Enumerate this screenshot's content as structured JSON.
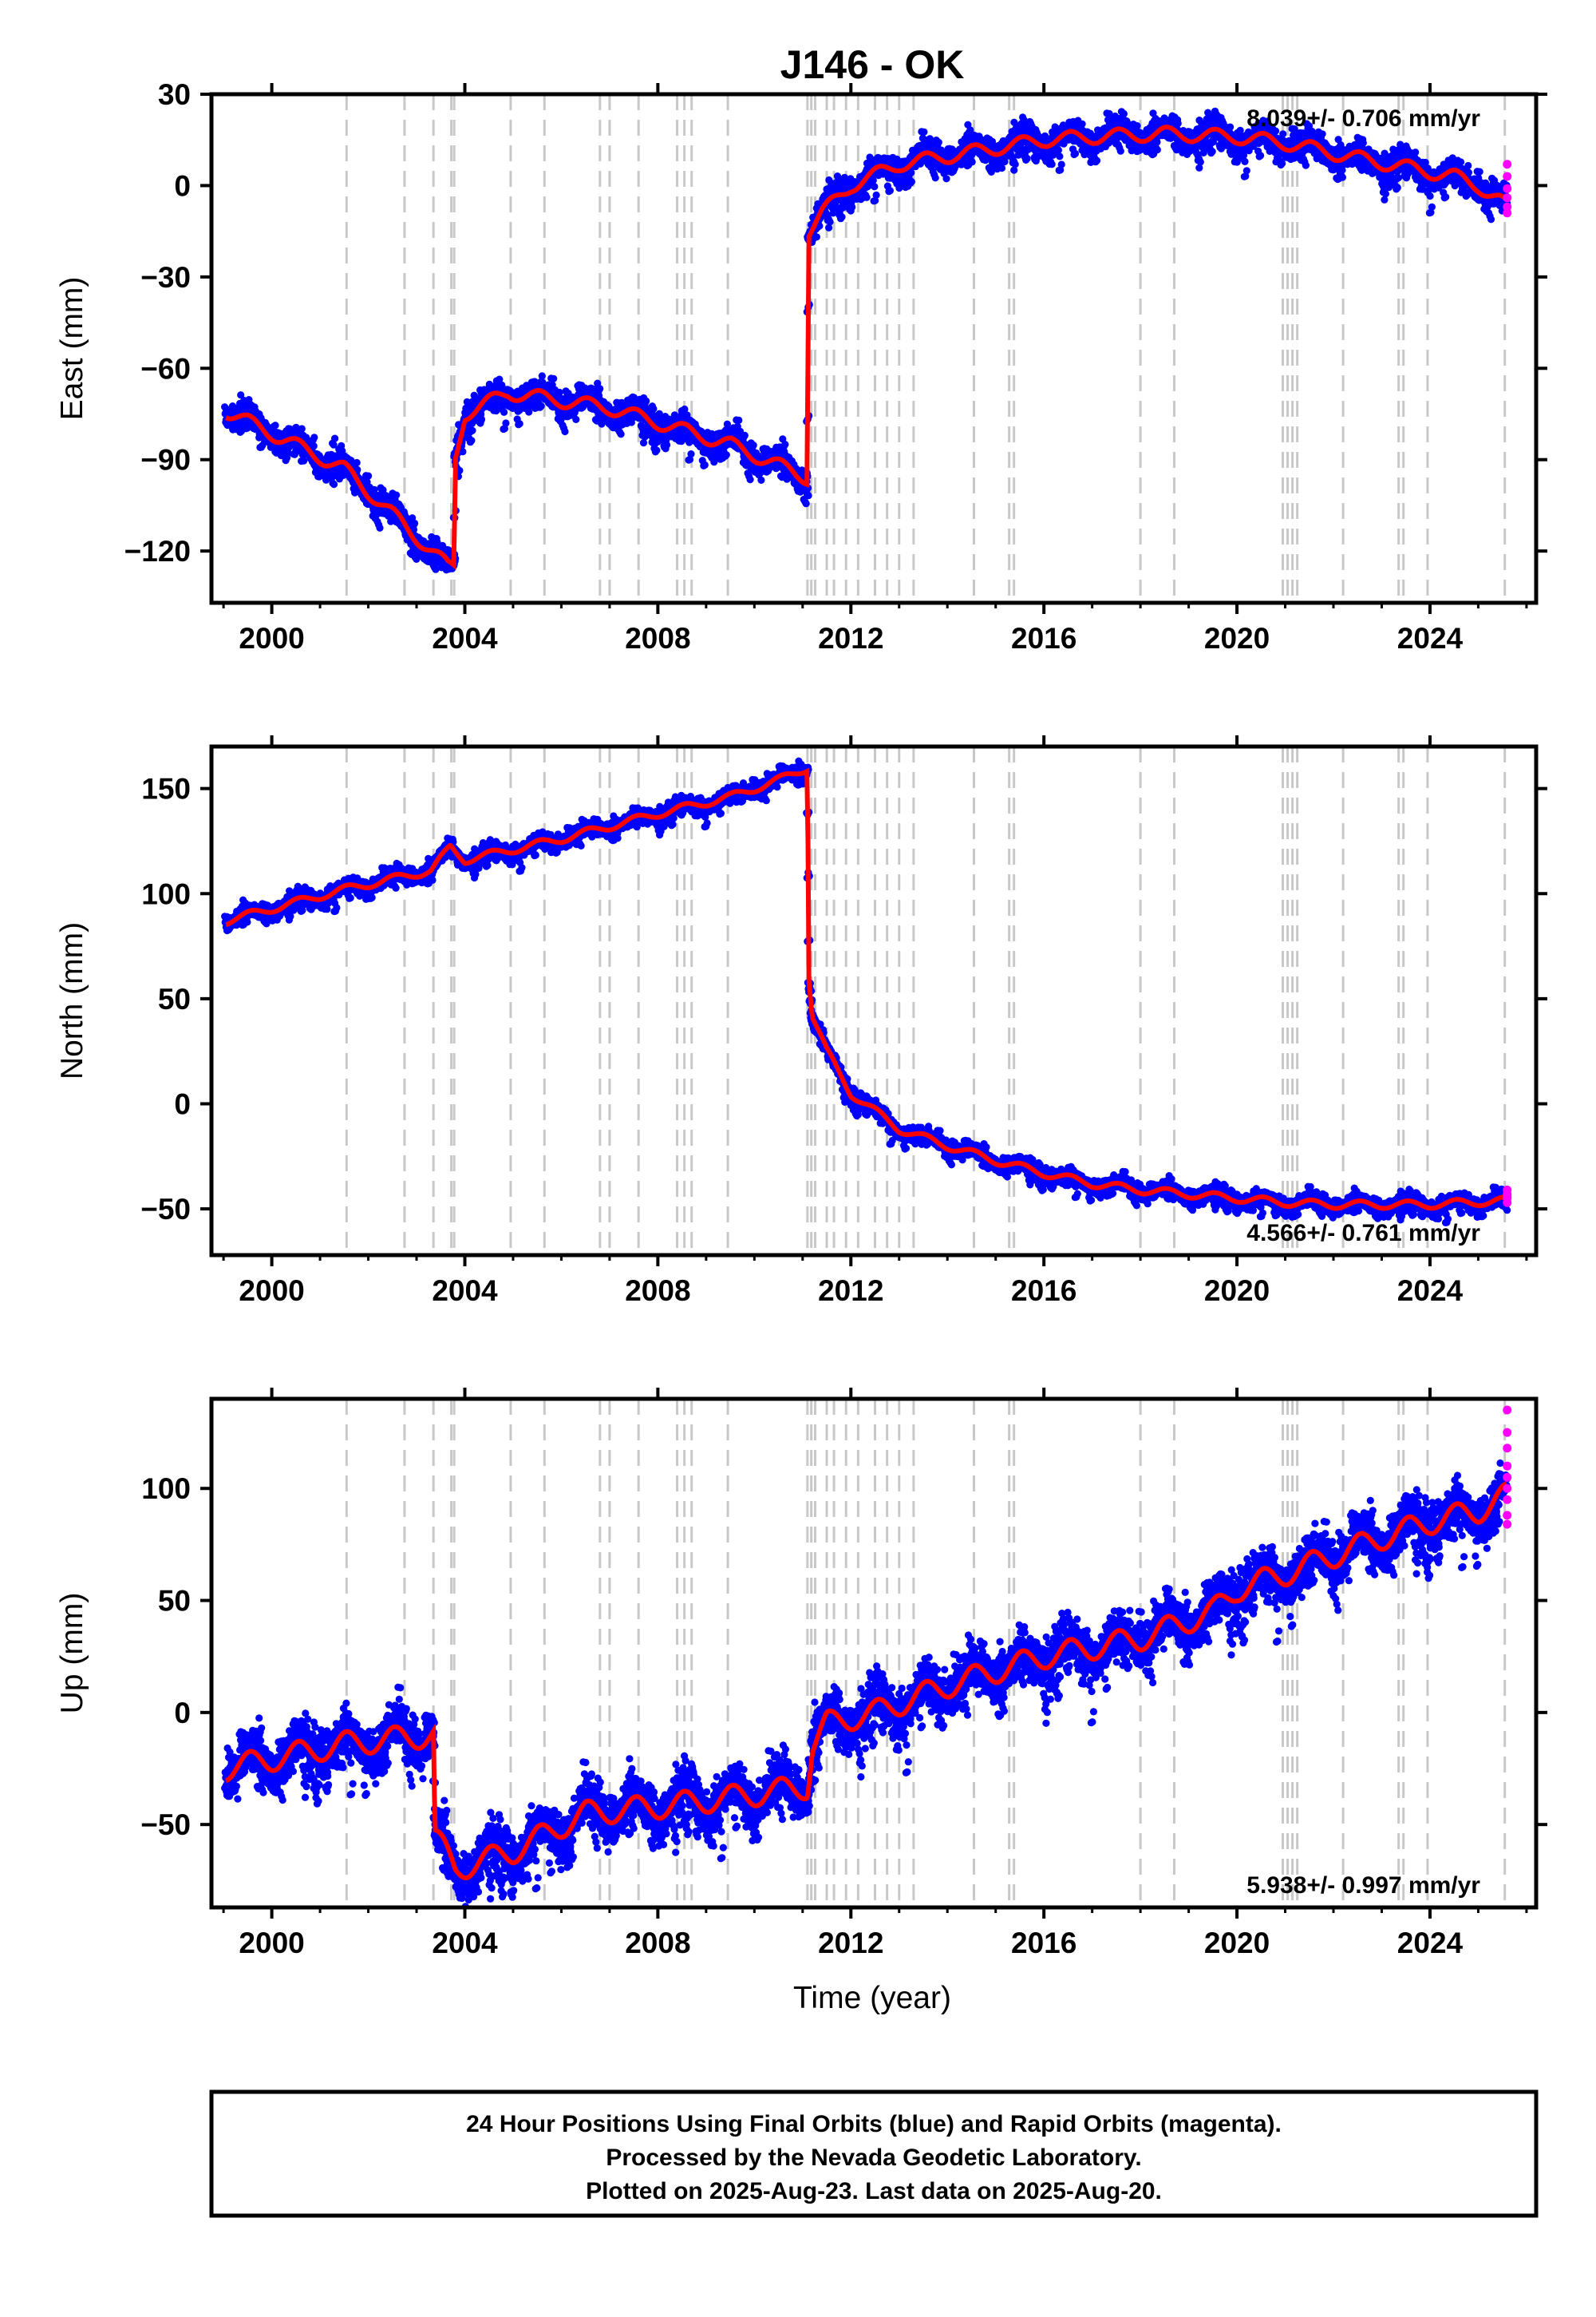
{
  "chart_data": {
    "type": "scatter",
    "title": "J146 - OK",
    "xlabel": "Time (year)",
    "x_ticks": [
      2000,
      2004,
      2008,
      2012,
      2016,
      2020,
      2024
    ],
    "xlim": [
      1998.75,
      2026.2
    ],
    "colors": {
      "final": "#0000ff",
      "rapid": "#ff00ff",
      "model": "#ff0000",
      "event": "#c8c8c8"
    },
    "event_lines": [
      2001.55,
      2002.75,
      2003.35,
      2003.72,
      2003.78,
      2004.95,
      2005.65,
      2006.8,
      2007.0,
      2007.6,
      2008.4,
      2008.55,
      2008.7,
      2009.45,
      2011.1,
      2011.18,
      2011.26,
      2011.5,
      2011.65,
      2011.9,
      2012.15,
      2012.5,
      2012.75,
      2013.0,
      2013.3,
      2014.55,
      2015.28,
      2015.38,
      2018.0,
      2018.7,
      2020.95,
      2021.05,
      2021.15,
      2021.25,
      2022.2,
      2023.35,
      2023.45,
      2023.95,
      2025.55
    ],
    "panels": [
      {
        "ylabel": "East (mm)",
        "y_ticks": [
          30,
          0,
          -30,
          -60,
          -90,
          -120
        ],
        "ylim": [
          -137,
          30
        ],
        "rate_label": "8.039+/- 0.706 mm/yr",
        "rate_position": "top-right",
        "noise": 2.3,
        "spread": 3.2,
        "seasonal": 2.5,
        "model": [
          [
            1999.05,
            -74
          ],
          [
            2001.5,
            -93
          ],
          [
            2003.65,
            -125
          ],
          [
            2003.78,
            -125
          ],
          [
            2003.8,
            -90
          ],
          [
            2004.0,
            -75
          ],
          [
            2004.9,
            -68
          ],
          [
            2007.0,
            -73
          ],
          [
            2009.5,
            -85
          ],
          [
            2011.1,
            -96
          ],
          [
            2011.12,
            -15
          ],
          [
            2011.4,
            -9
          ],
          [
            2012.0,
            0
          ],
          [
            2013.0,
            7
          ],
          [
            2014.5,
            11
          ],
          [
            2016.0,
            15
          ],
          [
            2017.0,
            16
          ],
          [
            2018.5,
            17
          ],
          [
            2020.0,
            16
          ],
          [
            2021.0,
            14
          ],
          [
            2022.5,
            9
          ],
          [
            2023.5,
            6
          ],
          [
            2024.5,
            3
          ],
          [
            2025.0,
            0
          ],
          [
            2025.45,
            -5
          ],
          [
            2025.6,
            -7
          ]
        ],
        "rapid": [
          [
            2025.6,
            7
          ],
          [
            2025.6,
            3
          ],
          [
            2025.6,
            -1
          ],
          [
            2025.6,
            -4
          ],
          [
            2025.6,
            -7
          ],
          [
            2025.6,
            -9
          ]
        ]
      },
      {
        "ylabel": "North (mm)",
        "y_ticks": [
          150,
          100,
          50,
          0,
          -50
        ],
        "ylim": [
          -72,
          170
        ],
        "rate_label": "4.566+/- 0.761 mm/yr",
        "rate_position": "bottom-right",
        "noise": 2.0,
        "spread": 2.8,
        "seasonal": 2.0,
        "model": [
          [
            1999.05,
            87
          ],
          [
            2001.5,
            102
          ],
          [
            2003.3,
            111
          ],
          [
            2003.7,
            122
          ],
          [
            2004.0,
            116
          ],
          [
            2006.0,
            126
          ],
          [
            2008.0,
            138
          ],
          [
            2009.5,
            146
          ],
          [
            2010.5,
            154
          ],
          [
            2011.1,
            160
          ],
          [
            2011.13,
            60
          ],
          [
            2011.2,
            42
          ],
          [
            2011.5,
            25
          ],
          [
            2012.0,
            5
          ],
          [
            2013.0,
            -12
          ],
          [
            2014.0,
            -20
          ],
          [
            2015.0,
            -27
          ],
          [
            2016.0,
            -33
          ],
          [
            2017.0,
            -38
          ],
          [
            2018.0,
            -41
          ],
          [
            2019.0,
            -43
          ],
          [
            2020.0,
            -45
          ],
          [
            2021.0,
            -47
          ],
          [
            2022.0,
            -48
          ],
          [
            2023.0,
            -48
          ],
          [
            2024.0,
            -48
          ],
          [
            2025.6,
            -46
          ]
        ],
        "rapid": [
          [
            2025.6,
            -47
          ],
          [
            2025.6,
            -45
          ],
          [
            2025.6,
            -43
          ],
          [
            2025.6,
            -41
          ],
          [
            2025.6,
            -44
          ]
        ]
      },
      {
        "ylabel": "Up (mm)",
        "y_ticks": [
          100,
          50,
          0,
          -50
        ],
        "ylim": [
          -87,
          140
        ],
        "rate_label": "5.938+/- 0.997 mm/yr",
        "rate_position": "bottom-right",
        "noise": 6.0,
        "spread": 8.0,
        "seasonal": 6.0,
        "model": [
          [
            1999.05,
            -25
          ],
          [
            2001.5,
            -14
          ],
          [
            2003.35,
            -10
          ],
          [
            2003.38,
            -55
          ],
          [
            2003.8,
            -70
          ],
          [
            2005.0,
            -62
          ],
          [
            2006.5,
            -45
          ],
          [
            2008.0,
            -42
          ],
          [
            2009.5,
            -38
          ],
          [
            2011.1,
            -33
          ],
          [
            2011.2,
            -15
          ],
          [
            2011.5,
            -5
          ],
          [
            2012.5,
            0
          ],
          [
            2014.0,
            12
          ],
          [
            2016.0,
            25
          ],
          [
            2018.0,
            33
          ],
          [
            2019.5,
            45
          ],
          [
            2020.0,
            55
          ],
          [
            2021.0,
            62
          ],
          [
            2022.0,
            70
          ],
          [
            2023.0,
            78
          ],
          [
            2024.0,
            85
          ],
          [
            2025.0,
            90
          ],
          [
            2025.6,
            97
          ]
        ],
        "rapid": [
          [
            2025.6,
            135
          ],
          [
            2025.6,
            125
          ],
          [
            2025.6,
            118
          ],
          [
            2025.6,
            110
          ],
          [
            2025.6,
            105
          ],
          [
            2025.6,
            100
          ],
          [
            2025.6,
            95
          ],
          [
            2025.6,
            88
          ],
          [
            2025.6,
            84
          ]
        ]
      }
    ]
  },
  "footer": {
    "line1": "24 Hour Positions Using Final Orbits (blue) and Rapid Orbits (magenta).",
    "line2": "Processed by the Nevada Geodetic Laboratory.",
    "line3": "Plotted on 2025-Aug-23. Last data on 2025-Aug-20."
  }
}
